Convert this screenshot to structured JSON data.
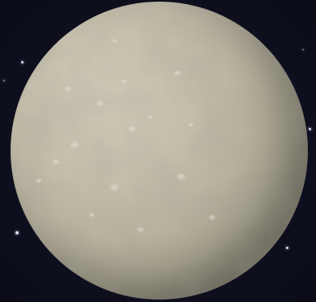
{
  "scene": {
    "subject": "moon",
    "background_color": "#0e0f1c",
    "moon_color": "#bdb7a2"
  }
}
